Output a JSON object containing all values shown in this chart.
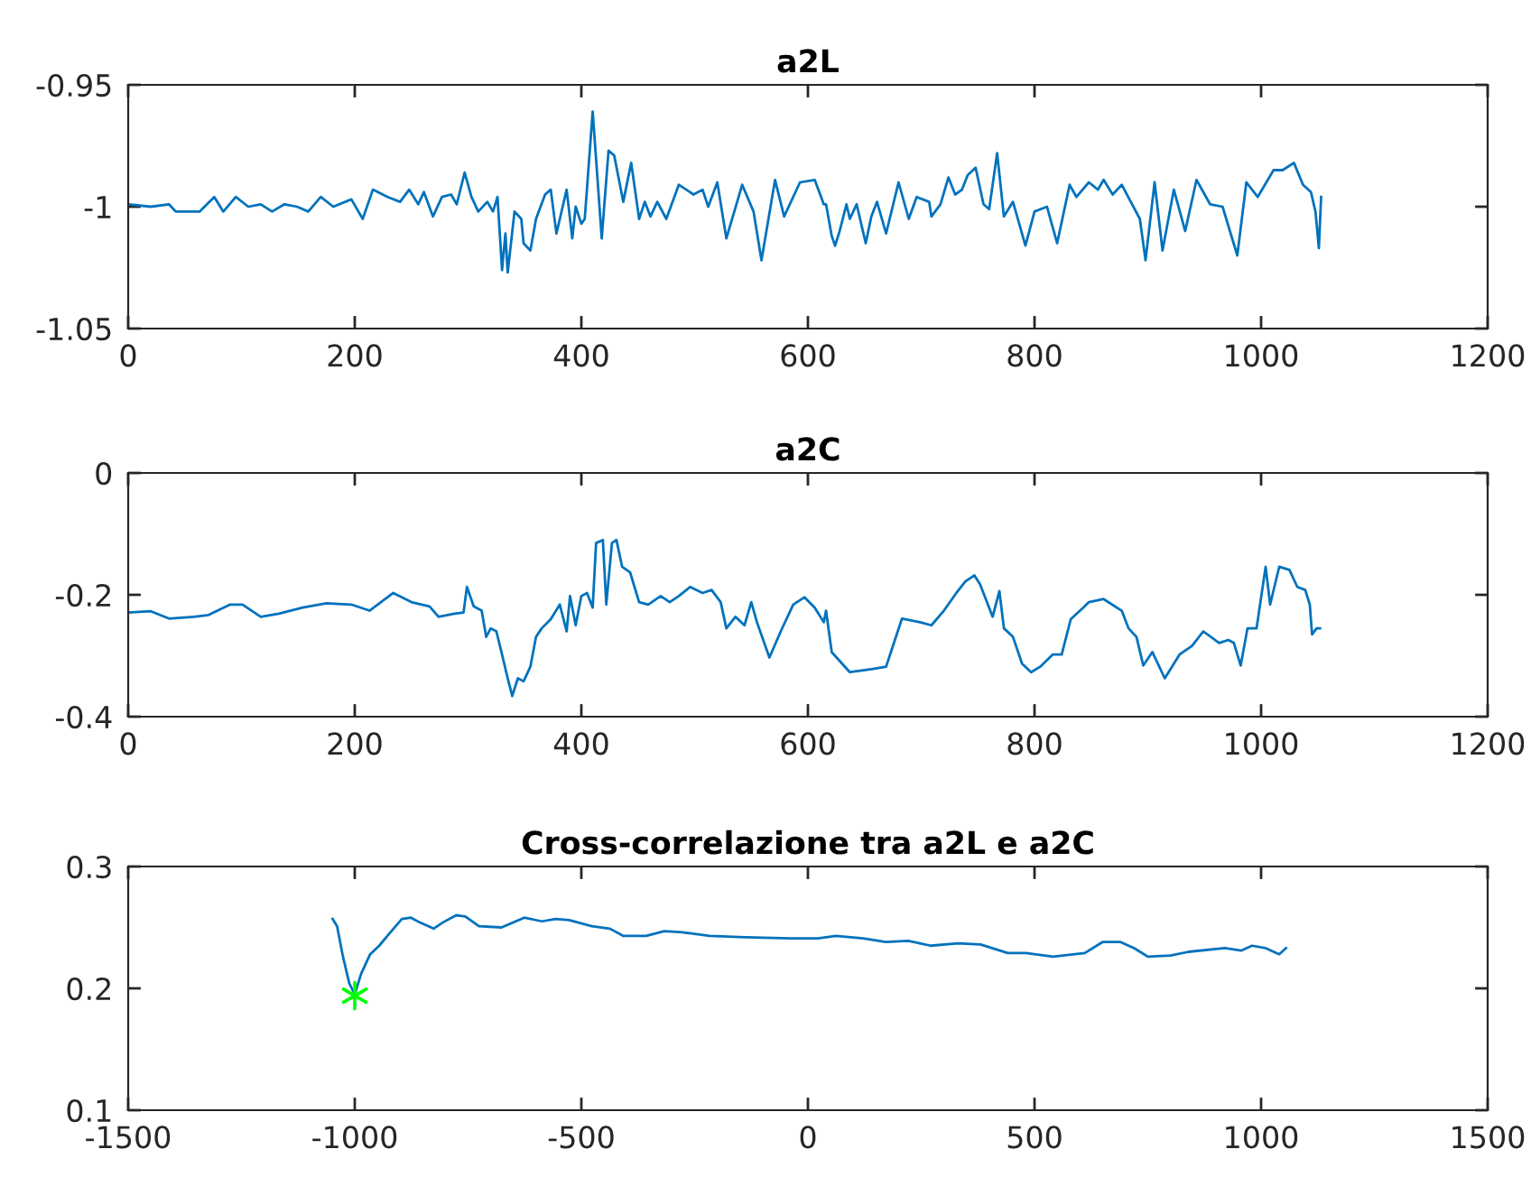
{
  "chart_data": [
    {
      "type": "line",
      "title": "a2L",
      "xlim": [
        0,
        1200
      ],
      "xticks": [
        0,
        200,
        400,
        600,
        800,
        1000,
        1200
      ],
      "ylim": [
        -1.05,
        -0.95
      ],
      "yticks": [
        -1.05,
        -1,
        -0.95
      ],
      "series": [
        {
          "color": "#0072bd",
          "x": [
            0,
            20,
            36,
            42,
            63,
            76,
            84,
            95,
            106,
            117,
            127,
            138,
            149,
            159,
            170,
            181,
            197,
            207,
            216,
            229,
            240,
            248,
            256,
            261,
            269,
            277,
            285,
            290,
            297,
            303,
            309,
            317,
            322,
            326,
            330,
            333,
            335,
            341,
            347,
            349,
            355,
            360,
            368,
            373,
            378,
            383,
            387,
            392,
            395,
            400,
            403,
            410,
            418,
            424,
            429,
            437,
            444,
            451,
            456,
            461,
            467,
            475,
            486,
            499,
            507,
            512,
            520,
            528,
            542,
            552,
            559,
            571,
            579,
            593,
            606,
            614,
            616,
            621,
            624,
            628,
            634,
            637,
            643,
            651,
            656,
            661,
            669,
            680,
            689,
            696,
            707,
            709,
            717,
            724,
            730,
            736,
            741,
            748,
            755,
            760,
            767,
            773,
            781,
            792,
            800,
            811,
            820,
            831,
            837,
            848,
            856,
            861,
            869,
            877,
            885,
            893,
            898,
            906,
            913,
            923,
            933,
            943,
            955,
            966,
            979,
            987,
            997,
            1011,
            1019,
            1029,
            1037,
            1044,
            1048,
            1051,
            1053
          ],
          "values": [
            -0.999,
            -1.0,
            -0.999,
            -1.002,
            -1.002,
            -0.996,
            -1.002,
            -0.996,
            -1.0,
            -0.999,
            -1.002,
            -0.999,
            -1.0,
            -1.002,
            -0.996,
            -1.0,
            -0.997,
            -1.005,
            -0.993,
            -0.996,
            -0.998,
            -0.993,
            -0.999,
            -0.994,
            -1.004,
            -0.996,
            -0.995,
            -0.999,
            -0.986,
            -0.996,
            -1.002,
            -0.998,
            -1.002,
            -0.996,
            -1.026,
            -1.011,
            -1.027,
            -1.002,
            -1.005,
            -1.015,
            -1.018,
            -1.005,
            -0.995,
            -0.993,
            -1.011,
            -1.001,
            -0.993,
            -1.013,
            -1.0,
            -1.007,
            -1.005,
            -0.961,
            -1.013,
            -0.977,
            -0.979,
            -0.998,
            -0.982,
            -1.005,
            -0.998,
            -1.004,
            -0.998,
            -1.005,
            -0.991,
            -0.995,
            -0.993,
            -1.0,
            -0.99,
            -1.013,
            -0.991,
            -1.002,
            -1.022,
            -0.989,
            -1.004,
            -0.99,
            -0.989,
            -0.999,
            -0.999,
            -1.012,
            -1.016,
            -1.01,
            -0.999,
            -1.005,
            -0.999,
            -1.015,
            -1.004,
            -0.998,
            -1.011,
            -0.99,
            -1.005,
            -0.996,
            -0.998,
            -1.004,
            -0.999,
            -0.988,
            -0.995,
            -0.993,
            -0.987,
            -0.984,
            -0.999,
            -1.001,
            -0.978,
            -1.004,
            -0.998,
            -1.016,
            -1.002,
            -1.0,
            -1.015,
            -0.991,
            -0.996,
            -0.99,
            -0.993,
            -0.989,
            -0.995,
            -0.991,
            -0.998,
            -1.005,
            -1.022,
            -0.99,
            -1.018,
            -0.993,
            -1.01,
            -0.989,
            -0.999,
            -1.0,
            -1.02,
            -0.99,
            -0.996,
            -0.985,
            -0.985,
            -0.982,
            -0.991,
            -0.994,
            -1.002,
            -1.017,
            -0.996
          ]
        }
      ]
    },
    {
      "type": "line",
      "title": "a2C",
      "xlim": [
        0,
        1200
      ],
      "xticks": [
        0,
        200,
        400,
        600,
        800,
        1000,
        1200
      ],
      "ylim": [
        -0.4,
        0
      ],
      "yticks": [
        -0.4,
        -0.2,
        0
      ],
      "series": [
        {
          "color": "#0072bd",
          "x": [
            0,
            20,
            36,
            58,
            71,
            90,
            101,
            117,
            133,
            154,
            175,
            197,
            213,
            234,
            250,
            266,
            274,
            288,
            296,
            299,
            305,
            312,
            316,
            320,
            325,
            330,
            335,
            339,
            344,
            349,
            355,
            360,
            365,
            373,
            381,
            387,
            390,
            395,
            400,
            405,
            410,
            413,
            419,
            422,
            427,
            431,
            436,
            443,
            451,
            459,
            470,
            478,
            486,
            496,
            507,
            515,
            523,
            528,
            536,
            544,
            550,
            555,
            566,
            576,
            587,
            597,
            606,
            614,
            616,
            621,
            637,
            656,
            669,
            675,
            683,
            699,
            709,
            720,
            731,
            739,
            747,
            752,
            763,
            769,
            773,
            781,
            789,
            797,
            805,
            816,
            824,
            832,
            843,
            848,
            861,
            877,
            883,
            890,
            896,
            904,
            915,
            928,
            939,
            949,
            963,
            971,
            976,
            982,
            988,
            996,
            1004,
            1008,
            1016,
            1025,
            1032,
            1039,
            1043,
            1045,
            1049,
            1052
          ],
          "values": [
            -0.229,
            -0.227,
            -0.239,
            -0.236,
            -0.233,
            -0.216,
            -0.216,
            -0.236,
            -0.231,
            -0.221,
            -0.214,
            -0.216,
            -0.226,
            -0.197,
            -0.212,
            -0.219,
            -0.236,
            -0.231,
            -0.229,
            -0.187,
            -0.219,
            -0.226,
            -0.269,
            -0.255,
            -0.26,
            -0.298,
            -0.337,
            -0.366,
            -0.337,
            -0.342,
            -0.318,
            -0.269,
            -0.255,
            -0.24,
            -0.216,
            -0.26,
            -0.202,
            -0.25,
            -0.202,
            -0.197,
            -0.221,
            -0.115,
            -0.11,
            -0.216,
            -0.115,
            -0.11,
            -0.154,
            -0.163,
            -0.212,
            -0.216,
            -0.202,
            -0.212,
            -0.202,
            -0.187,
            -0.197,
            -0.192,
            -0.212,
            -0.255,
            -0.236,
            -0.25,
            -0.212,
            -0.245,
            -0.303,
            -0.26,
            -0.216,
            -0.204,
            -0.221,
            -0.245,
            -0.226,
            -0.294,
            -0.327,
            -0.322,
            -0.318,
            -0.284,
            -0.239,
            -0.245,
            -0.25,
            -0.226,
            -0.197,
            -0.178,
            -0.168,
            -0.183,
            -0.236,
            -0.194,
            -0.255,
            -0.269,
            -0.313,
            -0.327,
            -0.318,
            -0.298,
            -0.298,
            -0.24,
            -0.221,
            -0.212,
            -0.207,
            -0.226,
            -0.255,
            -0.269,
            -0.316,
            -0.294,
            -0.337,
            -0.298,
            -0.284,
            -0.26,
            -0.279,
            -0.274,
            -0.279,
            -0.316,
            -0.255,
            -0.255,
            -0.154,
            -0.216,
            -0.154,
            -0.159,
            -0.187,
            -0.192,
            -0.216,
            -0.265,
            -0.255,
            -0.255
          ]
        }
      ]
    },
    {
      "type": "line",
      "title": "Cross-correlazione tra a2L e a2C",
      "xlim": [
        -1500,
        1500
      ],
      "xticks": [
        -1500,
        -1000,
        -500,
        0,
        500,
        1000,
        1500
      ],
      "ylim": [
        0.1,
        0.3
      ],
      "yticks": [
        0.1,
        0.2,
        0.3
      ],
      "series": [
        {
          "color": "#0072bd",
          "x": [
            -1049,
            -1039,
            -1026,
            -1012,
            -1000,
            -986,
            -966,
            -946,
            -926,
            -896,
            -876,
            -856,
            -826,
            -806,
            -776,
            -756,
            -726,
            -676,
            -626,
            -587,
            -557,
            -527,
            -477,
            -437,
            -407,
            -357,
            -317,
            -277,
            -217,
            -138,
            -38,
            22,
            62,
            122,
            172,
            221,
            271,
            331,
            381,
            441,
            481,
            541,
            611,
            650,
            690,
            720,
            750,
            800,
            840,
            920,
            956,
            980,
            1010,
            1040,
            1055
          ],
          "values": [
            0.257,
            0.251,
            0.226,
            0.204,
            0.195,
            0.212,
            0.228,
            0.235,
            0.244,
            0.257,
            0.258,
            0.254,
            0.249,
            0.254,
            0.26,
            0.259,
            0.251,
            0.25,
            0.258,
            0.255,
            0.257,
            0.256,
            0.251,
            0.249,
            0.243,
            0.243,
            0.247,
            0.246,
            0.243,
            0.242,
            0.241,
            0.241,
            0.243,
            0.241,
            0.238,
            0.239,
            0.235,
            0.237,
            0.236,
            0.229,
            0.229,
            0.226,
            0.229,
            0.238,
            0.238,
            0.233,
            0.226,
            0.227,
            0.23,
            0.233,
            0.231,
            0.235,
            0.233,
            0.228,
            0.233
          ]
        },
        {
          "type": "scatter",
          "color": "#00ff00",
          "marker": "cross",
          "x": [
            -1000
          ],
          "values": [
            0.194
          ]
        }
      ]
    }
  ]
}
